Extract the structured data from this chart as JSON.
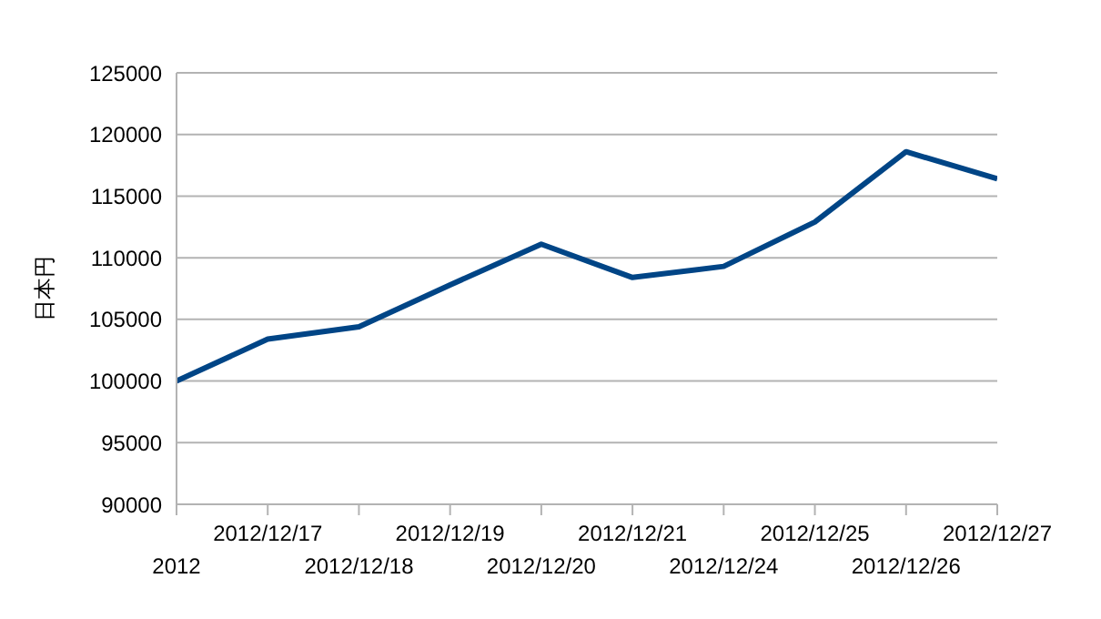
{
  "chart_data": {
    "type": "line",
    "ylabel": "日本円",
    "categories": [
      "2012",
      "2012/12/17",
      "2012/12/18",
      "2012/12/19",
      "2012/12/20",
      "2012/12/21",
      "2012/12/24",
      "2012/12/25",
      "2012/12/26",
      "2012/12/27"
    ],
    "series": [
      {
        "color": "#004586",
        "values": [
          100000,
          103400,
          104400,
          107800,
          111100,
          108400,
          109300,
          112900,
          118600,
          116400
        ]
      }
    ],
    "ylim": [
      90000,
      125000
    ],
    "yticks": [
      90000,
      95000,
      100000,
      105000,
      110000,
      115000,
      120000,
      125000
    ],
    "grid": "y",
    "legend": false,
    "marker": "none",
    "line_style": "solid"
  }
}
